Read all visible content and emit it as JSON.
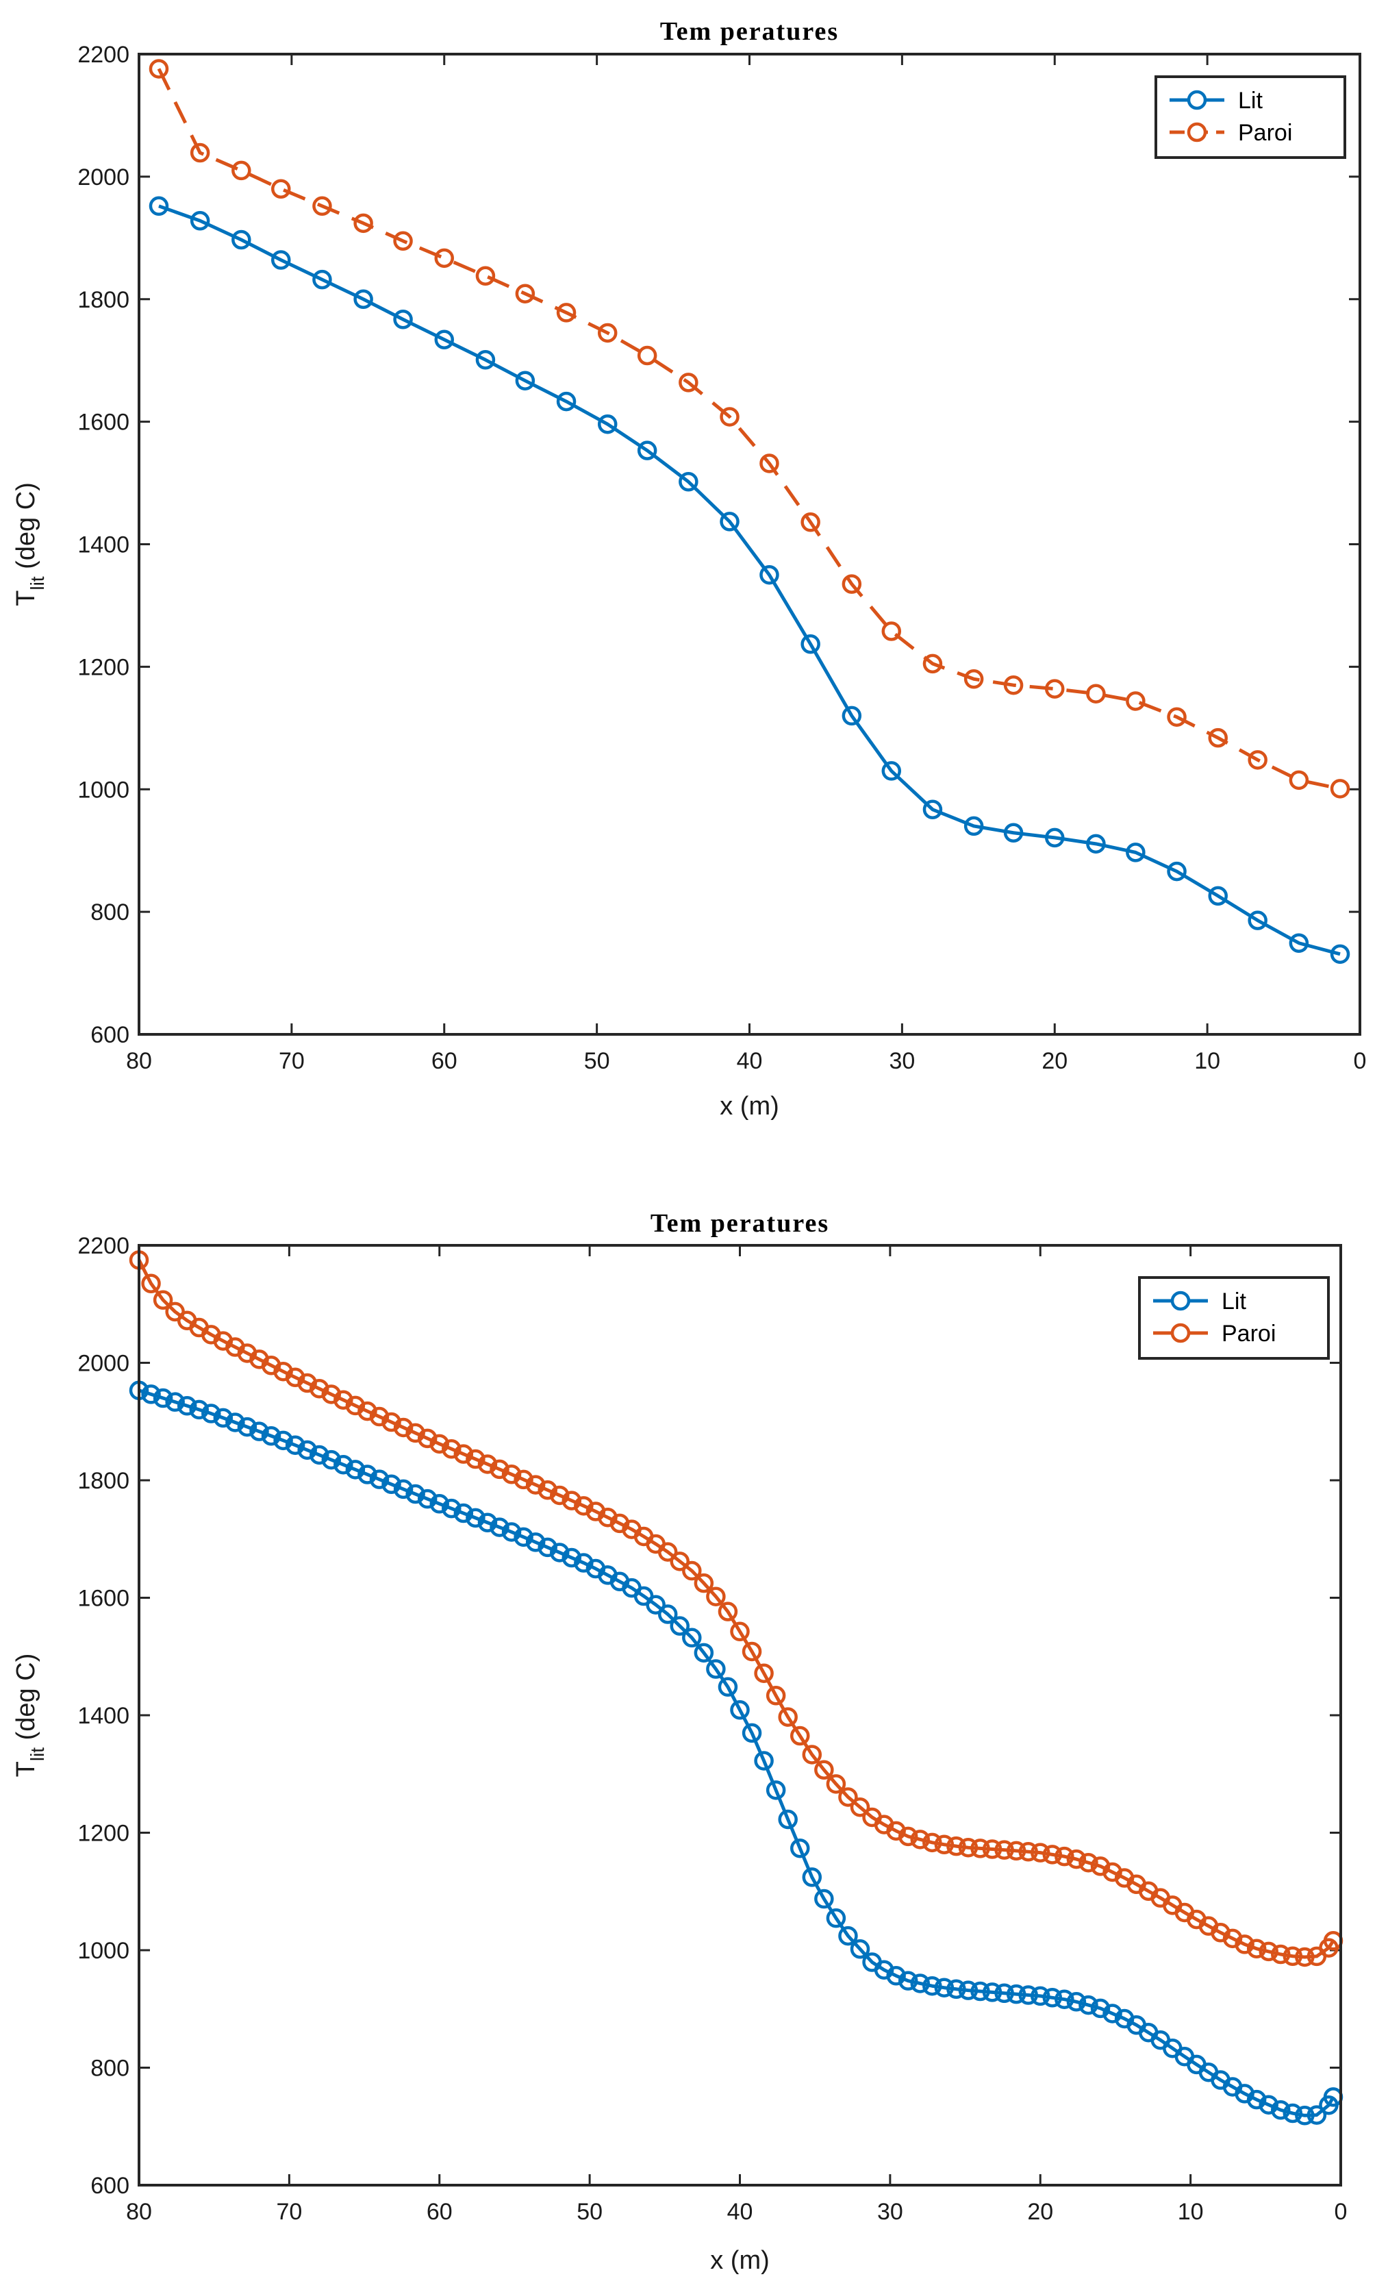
{
  "chart_data": [
    {
      "type": "line",
      "title": "Tem peratures",
      "xlabel": "x (m)",
      "ylabel_main": "T",
      "ylabel_sub": "lit",
      "ylabel_rest": " (deg C)",
      "xlim": [
        80,
        0
      ],
      "ylim": [
        600,
        2200
      ],
      "xticks": [
        80,
        70,
        60,
        50,
        40,
        30,
        20,
        10,
        0
      ],
      "yticks": [
        600,
        800,
        1000,
        1200,
        1400,
        1600,
        1800,
        2000,
        2200
      ],
      "legend_position": "top-right",
      "series": [
        {
          "name": "Lit",
          "color": "#0072BD",
          "dash": "solid",
          "x": [
            78.7,
            76,
            73.3,
            70.7,
            68,
            65.3,
            62.7,
            60,
            57.3,
            54.7,
            52,
            49.3,
            46.7,
            44,
            41.3,
            38.7,
            36,
            33.3,
            30.7,
            28,
            25.3,
            22.7,
            20,
            17.3,
            14.7,
            12,
            9.3,
            6.7,
            4,
            1.3
          ],
          "values": [
            1952,
            1928,
            1897,
            1864,
            1832,
            1800,
            1767,
            1734,
            1701,
            1667,
            1633,
            1596,
            1553,
            1502,
            1437,
            1350,
            1237,
            1120,
            1030,
            967,
            940,
            929,
            921,
            911,
            897,
            866,
            826,
            786,
            749,
            731
          ]
        },
        {
          "name": "Paroi",
          "color": "#D95319",
          "dash": "dashed",
          "x": [
            78.7,
            76,
            73.3,
            70.7,
            68,
            65.3,
            62.7,
            60,
            57.3,
            54.7,
            52,
            49.3,
            46.7,
            44,
            41.3,
            38.7,
            36,
            33.3,
            30.7,
            28,
            25.3,
            22.7,
            20,
            17.3,
            14.7,
            12,
            9.3,
            6.7,
            4,
            1.3
          ],
          "values": [
            2176,
            2039,
            2010,
            1980,
            1952,
            1924,
            1895,
            1867,
            1838,
            1809,
            1778,
            1745,
            1708,
            1664,
            1608,
            1532,
            1436,
            1335,
            1258,
            1205,
            1180,
            1170,
            1164,
            1156,
            1144,
            1118,
            1084,
            1048,
            1015,
            1001
          ]
        }
      ]
    },
    {
      "type": "line",
      "title": "Tem peratures",
      "xlabel": "x (m)",
      "ylabel_main": "T",
      "ylabel_sub": "lit",
      "ylabel_rest": " (deg C)",
      "xlim": [
        80,
        0
      ],
      "ylim": [
        600,
        2200
      ],
      "xticks": [
        80,
        70,
        60,
        50,
        40,
        30,
        20,
        10,
        0
      ],
      "yticks": [
        600,
        800,
        1000,
        1200,
        1400,
        1600,
        1800,
        2000,
        2200
      ],
      "legend_position": "top-right",
      "series": [
        {
          "name": "Lit",
          "color": "#0072BD",
          "dash": "solid",
          "step": 0.8,
          "knots_x": [
            80,
            75,
            70,
            65,
            60,
            55,
            50,
            47,
            45,
            43,
            41,
            39,
            37,
            35,
            33,
            31,
            29,
            27,
            25,
            22,
            20,
            18,
            16,
            14,
            12,
            10,
            8,
            6,
            4,
            3,
            2,
            1.5,
            1,
            0.5
          ],
          "knots_y": [
            1953,
            1912,
            1864,
            1812,
            1760,
            1710,
            1655,
            1614,
            1577,
            1527,
            1458,
            1360,
            1235,
            1112,
            1030,
            974,
            949,
            938,
            932,
            926,
            922,
            915,
            901,
            879,
            847,
            812,
            779,
            750,
            728,
            721,
            717,
            720,
            727,
            750
          ]
        },
        {
          "name": "Paroi",
          "color": "#D95319",
          "dash": "solid",
          "step": 0.8,
          "knots_x": [
            80,
            79,
            78,
            77,
            75,
            70,
            65,
            60,
            55,
            50,
            47,
            45,
            43,
            41,
            39,
            37,
            35,
            33,
            31,
            29,
            27,
            25,
            22,
            20,
            18,
            16,
            14,
            12,
            10,
            8,
            6,
            4,
            3,
            2,
            1.5,
            1,
            0.5
          ],
          "knots_y": [
            2175,
            2125,
            2095,
            2075,
            2045,
            1980,
            1920,
            1862,
            1808,
            1752,
            1714,
            1682,
            1642,
            1585,
            1500,
            1405,
            1325,
            1265,
            1222,
            1195,
            1182,
            1175,
            1170,
            1166,
            1158,
            1143,
            1118,
            1089,
            1058,
            1030,
            1005,
            993,
            989,
            988,
            990,
            996,
            1016
          ]
        }
      ]
    }
  ]
}
